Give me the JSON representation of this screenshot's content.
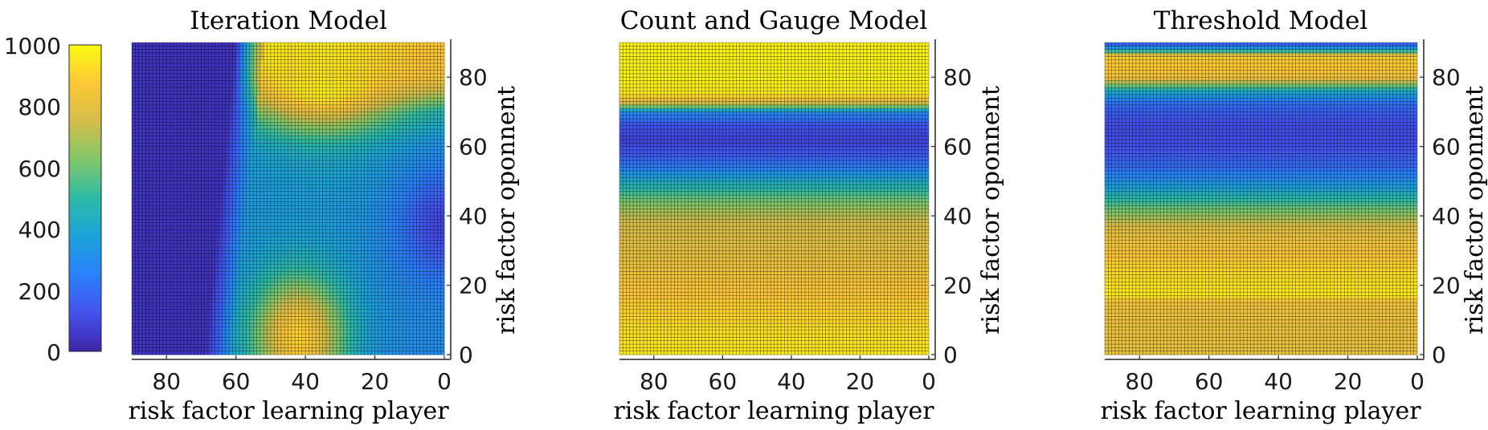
{
  "colorbar": {
    "ticks": [
      0,
      200,
      400,
      600,
      800,
      1000
    ],
    "colormap": "parula",
    "colors": [
      "#3e26a8",
      "#4352ec",
      "#2a80fa",
      "#1ba3d9",
      "#2dbba7",
      "#81c76a",
      "#d4bd4a",
      "#fdc737",
      "#f9fb0e"
    ]
  },
  "grid_cell_count": 90,
  "chart_data": [
    {
      "type": "heatmap",
      "title": "Iteration Model",
      "xlabel": "risk factor learning player",
      "ylabel": "risk factor oponnent",
      "xlim": [
        90,
        0
      ],
      "ylim": [
        0,
        90
      ],
      "xticks": [
        80,
        60,
        40,
        20,
        0
      ],
      "yticks": [
        0,
        20,
        40,
        60,
        80
      ],
      "zlim": [
        0,
        1000
      ]
    },
    {
      "type": "heatmap",
      "title": "Count and Gauge Model",
      "xlabel": "risk factor learning player",
      "ylabel": "risk factor oponnent",
      "xlim": [
        90,
        0
      ],
      "ylim": [
        0,
        90
      ],
      "xticks": [
        80,
        60,
        40,
        20,
        0
      ],
      "yticks": [
        0,
        20,
        40,
        60,
        80
      ],
      "zlim": [
        0,
        1000
      ],
      "row_profile": {
        "y": [
          0,
          10,
          20,
          30,
          38,
          44,
          50,
          54,
          58,
          62,
          66,
          70,
          72,
          75,
          80,
          90
        ],
        "value": [
          960,
          920,
          860,
          800,
          760,
          620,
          420,
          250,
          140,
          90,
          130,
          300,
          700,
          960,
          980,
          980
        ]
      }
    },
    {
      "type": "heatmap",
      "title": "Threshold Model",
      "xlabel": "risk factor learning player",
      "ylabel": "risk factor oponnent",
      "xlim": [
        90,
        0
      ],
      "ylim": [
        0,
        90
      ],
      "xticks": [
        80,
        60,
        40,
        20,
        0
      ],
      "yticks": [
        0,
        20,
        40,
        60,
        80
      ],
      "zlim": [
        0,
        1000
      ],
      "row_profile": {
        "y": [
          0,
          8,
          15,
          17,
          24,
          30,
          36,
          42,
          48,
          54,
          60,
          66,
          72,
          76,
          80,
          86,
          88,
          90
        ],
        "value": [
          820,
          830,
          840,
          960,
          920,
          860,
          800,
          600,
          380,
          200,
          120,
          110,
          190,
          420,
          860,
          900,
          400,
          120
        ]
      }
    }
  ]
}
